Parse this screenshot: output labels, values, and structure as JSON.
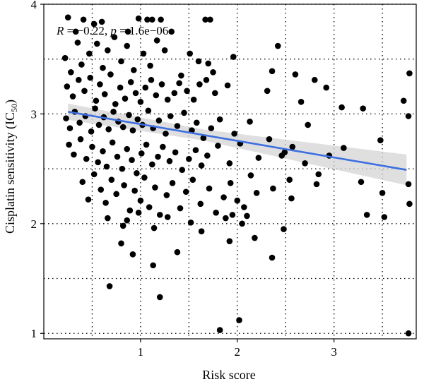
{
  "chart_data": {
    "type": "scatter",
    "xlabel": "Risk score",
    "ylabel": {
      "main": "Cisplatin sensitivity (IC",
      "subscript": "50",
      "suffix": ")"
    },
    "annotation": {
      "r_label": "R",
      "r_text": " = −0.22, ",
      "p_label": "p",
      "p_text": " = 1.6e−06"
    },
    "xlim": [
      0.0,
      3.85
    ],
    "ylim": [
      0.95,
      4.0
    ],
    "x_ticks": [
      1,
      2,
      3
    ],
    "y_ticks": [
      1,
      2,
      3,
      4
    ],
    "grid": true,
    "colors": {
      "points": "#000000",
      "fit_line": "#3d6fe0",
      "confidence_band": "#d4d4d4"
    },
    "fit": {
      "x": [
        0.25,
        3.75
      ],
      "y": [
        3.02,
        2.49
      ],
      "ci_halfwidth": [
        0.05,
        0.14
      ]
    },
    "points": [
      [
        0.25,
        3.88
      ],
      [
        0.33,
        3.75
      ],
      [
        0.41,
        3.86
      ],
      [
        0.52,
        3.82
      ],
      [
        0.6,
        3.84
      ],
      [
        0.87,
        3.75
      ],
      [
        0.98,
        3.87
      ],
      [
        1.07,
        3.86
      ],
      [
        1.12,
        3.86
      ],
      [
        1.21,
        3.86
      ],
      [
        1.67,
        3.86
      ],
      [
        1.72,
        3.86
      ],
      [
        0.22,
        3.51
      ],
      [
        0.28,
        3.38
      ],
      [
        0.35,
        3.65
      ],
      [
        0.39,
        3.45
      ],
      [
        0.47,
        3.55
      ],
      [
        0.55,
        3.64
      ],
      [
        0.61,
        3.42
      ],
      [
        0.66,
        3.58
      ],
      [
        0.73,
        3.7
      ],
      [
        0.8,
        3.48
      ],
      [
        0.86,
        3.62
      ],
      [
        0.93,
        3.4
      ],
      [
        1.03,
        3.55
      ],
      [
        1.1,
        3.44
      ],
      [
        1.17,
        3.67
      ],
      [
        1.25,
        3.58
      ],
      [
        1.32,
        3.75
      ],
      [
        1.42,
        3.35
      ],
      [
        1.51,
        3.55
      ],
      [
        1.6,
        3.48
      ],
      [
        1.7,
        3.46
      ],
      [
        1.75,
        3.38
      ],
      [
        1.96,
        3.52
      ],
      [
        2.36,
        3.39
      ],
      [
        2.42,
        3.62
      ],
      [
        2.6,
        3.36
      ],
      [
        0.24,
        3.25
      ],
      [
        0.3,
        3.16
      ],
      [
        0.36,
        3.31
      ],
      [
        0.42,
        3.21
      ],
      [
        0.48,
        3.33
      ],
      [
        0.54,
        3.12
      ],
      [
        0.58,
        3.27
      ],
      [
        0.63,
        3.18
      ],
      [
        0.69,
        3.36
      ],
      [
        0.74,
        3.09
      ],
      [
        0.79,
        3.24
      ],
      [
        0.84,
        3.14
      ],
      [
        0.9,
        3.29
      ],
      [
        0.95,
        3.19
      ],
      [
        1.0,
        3.11
      ],
      [
        1.05,
        3.24
      ],
      [
        1.11,
        3.31
      ],
      [
        1.16,
        3.17
      ],
      [
        1.22,
        3.27
      ],
      [
        1.28,
        3.13
      ],
      [
        1.35,
        3.19
      ],
      [
        1.4,
        3.28
      ],
      [
        1.48,
        3.21
      ],
      [
        1.55,
        3.13
      ],
      [
        1.61,
        3.27
      ],
      [
        1.68,
        3.31
      ],
      [
        1.77,
        3.19
      ],
      [
        1.9,
        3.26
      ],
      [
        2.31,
        3.21
      ],
      [
        2.66,
        3.11
      ],
      [
        2.8,
        3.31
      ],
      [
        2.92,
        3.24
      ],
      [
        3.08,
        3.06
      ],
      [
        3.78,
        3.37
      ],
      [
        0.23,
        2.96
      ],
      [
        0.27,
        2.87
      ],
      [
        0.32,
        3.02
      ],
      [
        0.37,
        2.92
      ],
      [
        0.43,
        2.98
      ],
      [
        0.49,
        2.84
      ],
      [
        0.53,
        3.05
      ],
      [
        0.57,
        2.9
      ],
      [
        0.62,
        2.97
      ],
      [
        0.67,
        2.86
      ],
      [
        0.72,
        3.02
      ],
      [
        0.77,
        2.93
      ],
      [
        0.82,
        2.88
      ],
      [
        0.88,
        2.99
      ],
      [
        0.92,
        2.85
      ],
      [
        0.97,
        2.95
      ],
      [
        1.02,
        2.9
      ],
      [
        1.08,
        3.03
      ],
      [
        1.13,
        2.87
      ],
      [
        1.19,
        2.94
      ],
      [
        1.26,
        2.82
      ],
      [
        1.31,
        2.98
      ],
      [
        1.38,
        2.89
      ],
      [
        1.45,
        3.01
      ],
      [
        1.53,
        2.85
      ],
      [
        1.58,
        2.92
      ],
      [
        1.65,
        2.78
      ],
      [
        1.73,
        2.87
      ],
      [
        1.82,
        2.95
      ],
      [
        1.97,
        2.82
      ],
      [
        2.13,
        2.93
      ],
      [
        2.33,
        2.77
      ],
      [
        2.57,
        2.7
      ],
      [
        2.73,
        2.9
      ],
      [
        3.3,
        3.05
      ],
      [
        3.72,
        3.12
      ],
      [
        3.77,
        2.98
      ],
      [
        0.26,
        2.72
      ],
      [
        0.31,
        2.63
      ],
      [
        0.38,
        2.77
      ],
      [
        0.44,
        2.59
      ],
      [
        0.5,
        2.7
      ],
      [
        0.56,
        2.56
      ],
      [
        0.61,
        2.66
      ],
      [
        0.65,
        2.52
      ],
      [
        0.71,
        2.74
      ],
      [
        0.76,
        2.61
      ],
      [
        0.81,
        2.5
      ],
      [
        0.86,
        2.68
      ],
      [
        0.91,
        2.58
      ],
      [
        0.96,
        2.46
      ],
      [
        1.01,
        2.64
      ],
      [
        1.06,
        2.72
      ],
      [
        1.12,
        2.54
      ],
      [
        1.18,
        2.61
      ],
      [
        1.23,
        2.7
      ],
      [
        1.3,
        2.57
      ],
      [
        1.36,
        2.65
      ],
      [
        1.43,
        2.49
      ],
      [
        1.5,
        2.59
      ],
      [
        1.57,
        2.67
      ],
      [
        1.63,
        2.53
      ],
      [
        1.69,
        2.62
      ],
      [
        1.8,
        2.71
      ],
      [
        1.92,
        2.55
      ],
      [
        2.03,
        2.73
      ],
      [
        2.22,
        2.6
      ],
      [
        2.46,
        2.62
      ],
      [
        2.49,
        2.65
      ],
      [
        2.54,
        2.4
      ],
      [
        2.7,
        2.55
      ],
      [
        2.84,
        2.45
      ],
      [
        2.95,
        2.62
      ],
      [
        3.1,
        2.69
      ],
      [
        3.28,
        2.38
      ],
      [
        3.48,
        2.76
      ],
      [
        0.4,
        2.38
      ],
      [
        0.46,
        2.22
      ],
      [
        0.52,
        2.45
      ],
      [
        0.59,
        2.31
      ],
      [
        0.64,
        2.19
      ],
      [
        0.7,
        2.4
      ],
      [
        0.75,
        2.27
      ],
      [
        0.83,
        2.35
      ],
      [
        0.89,
        2.12
      ],
      [
        0.94,
        2.3
      ],
      [
        1.0,
        2.21
      ],
      [
        1.04,
        2.42
      ],
      [
        1.09,
        2.15
      ],
      [
        1.15,
        2.33
      ],
      [
        1.2,
        2.08
      ],
      [
        1.27,
        2.26
      ],
      [
        1.33,
        2.37
      ],
      [
        1.41,
        2.14
      ],
      [
        1.47,
        2.29
      ],
      [
        1.54,
        2.4
      ],
      [
        1.62,
        2.18
      ],
      [
        1.71,
        2.32
      ],
      [
        1.78,
        2.1
      ],
      [
        1.86,
        2.24
      ],
      [
        1.93,
        2.37
      ],
      [
        2.0,
        2.21
      ],
      [
        2.07,
        2.15
      ],
      [
        2.14,
        2.44
      ],
      [
        2.2,
        2.28
      ],
      [
        2.37,
        2.32
      ],
      [
        2.56,
        2.23
      ],
      [
        2.82,
        2.36
      ],
      [
        3.5,
        2.28
      ],
      [
        3.77,
        2.36
      ],
      [
        3.78,
        2.18
      ],
      [
        0.66,
        2.05
      ],
      [
        0.82,
        1.98
      ],
      [
        0.86,
        2.03
      ],
      [
        0.98,
        2.1
      ],
      [
        1.14,
        1.96
      ],
      [
        1.28,
        2.06
      ],
      [
        1.52,
        2.01
      ],
      [
        1.63,
        1.93
      ],
      [
        1.88,
        2.05
      ],
      [
        1.95,
        2.08
      ],
      [
        2.05,
        2.0
      ],
      [
        2.1,
        2.07
      ],
      [
        2.48,
        1.95
      ],
      [
        3.34,
        2.08
      ],
      [
        3.52,
        2.06
      ],
      [
        0.8,
        1.82
      ],
      [
        0.92,
        1.72
      ],
      [
        1.13,
        1.62
      ],
      [
        1.38,
        1.74
      ],
      [
        1.92,
        1.84
      ],
      [
        2.18,
        1.87
      ],
      [
        2.36,
        1.69
      ],
      [
        0.68,
        1.43
      ],
      [
        1.2,
        1.33
      ],
      [
        1.82,
        1.03
      ],
      [
        2.02,
        1.12
      ],
      [
        3.77,
        1.0
      ]
    ]
  }
}
